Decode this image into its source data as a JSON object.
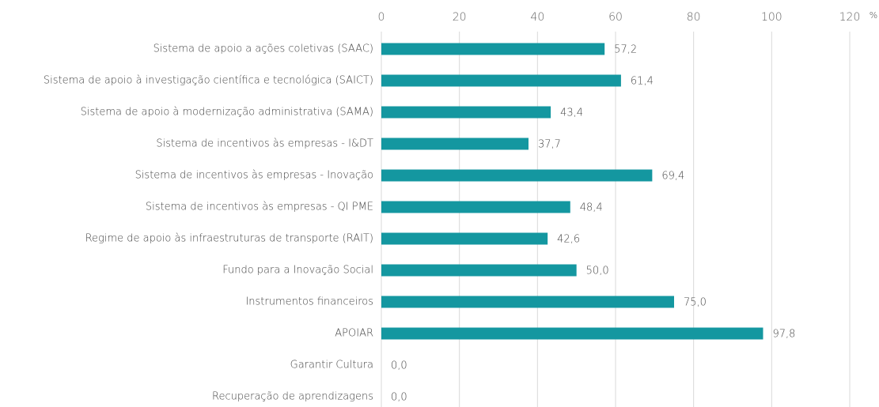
{
  "chart_data": {
    "type": "bar",
    "orientation": "horizontal",
    "unit": "%",
    "categories": [
      "Sistema de apoio a ações coletivas (SAAC)",
      "Sistema de apoio à investigação científica e tecnológica (SAICT)",
      "Sistema de apoio à modernização administrativa (SAMA)",
      "Sistema de incentivos às empresas - I&DT",
      "Sistema de incentivos às empresas - Inovação",
      "Sistema de incentivos às empresas - QI PME",
      "Regime de apoio às infraestruturas de transporte (RAIT)",
      "Fundo para a Inovação Social",
      "Instrumentos financeiros",
      "APOIAR",
      "Garantir Cultura",
      "Recuperação de aprendizagens"
    ],
    "values": [
      57.2,
      61.4,
      43.4,
      37.7,
      69.4,
      48.4,
      42.6,
      50.0,
      75.0,
      97.8,
      0.0,
      0.0
    ],
    "value_labels": [
      "57,2",
      "61,4",
      "43,4",
      "37,7",
      "69,4",
      "48,4",
      "42,6",
      "50,0",
      "75,0",
      "97,8",
      "0,0",
      "0,0"
    ],
    "color": "#1497a0",
    "xlim": [
      0,
      120
    ],
    "xticks": [
      0,
      20,
      40,
      60,
      80,
      100,
      120
    ],
    "grid": true
  }
}
